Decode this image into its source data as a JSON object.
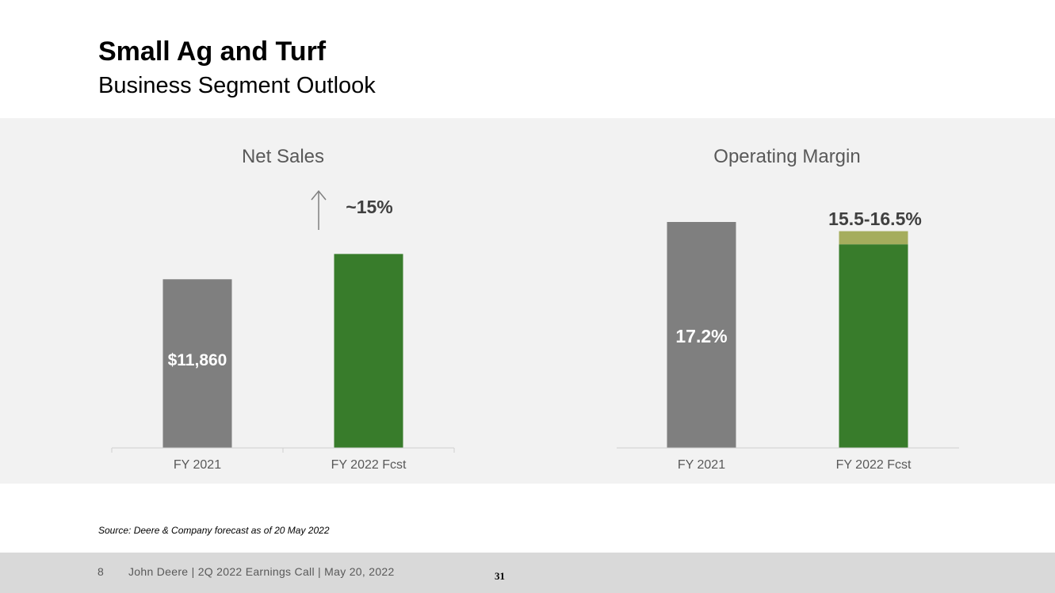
{
  "slide": {
    "title": "Small Ag and Turf",
    "subtitle": "Business Segment Outlook",
    "source": "Source: Deere & Company forecast as of 20 May 2022",
    "footer": {
      "page_number": "8",
      "text": "John Deere | 2Q 2022 Earnings Call | May 20, 2022",
      "slide_number": "31"
    }
  },
  "colors": {
    "gray_bar": "#7f7f7f",
    "green_bar": "#387c2b",
    "range_band": "#a5ad5d",
    "panel_bg": "#f2f2f2",
    "axis_line": "#d0d0d0"
  },
  "chart_data": [
    {
      "type": "bar",
      "title": "Net Sales",
      "categories": [
        "FY 2021",
        "FY 2022 Fcst"
      ],
      "values": [
        11860,
        13639
      ],
      "data_labels": [
        "$11,860",
        "~15%"
      ],
      "annotation": "up-arrow",
      "ylim": [
        0,
        16000
      ]
    },
    {
      "type": "bar",
      "title": "Operating Margin",
      "categories": [
        "FY 2021",
        "FY 2022 Fcst"
      ],
      "values": [
        17.2,
        15.5
      ],
      "range_high": [
        null,
        16.5
      ],
      "data_labels": [
        "17.2%",
        "15.5-16.5%"
      ],
      "ylim": [
        0,
        17.2
      ]
    }
  ]
}
